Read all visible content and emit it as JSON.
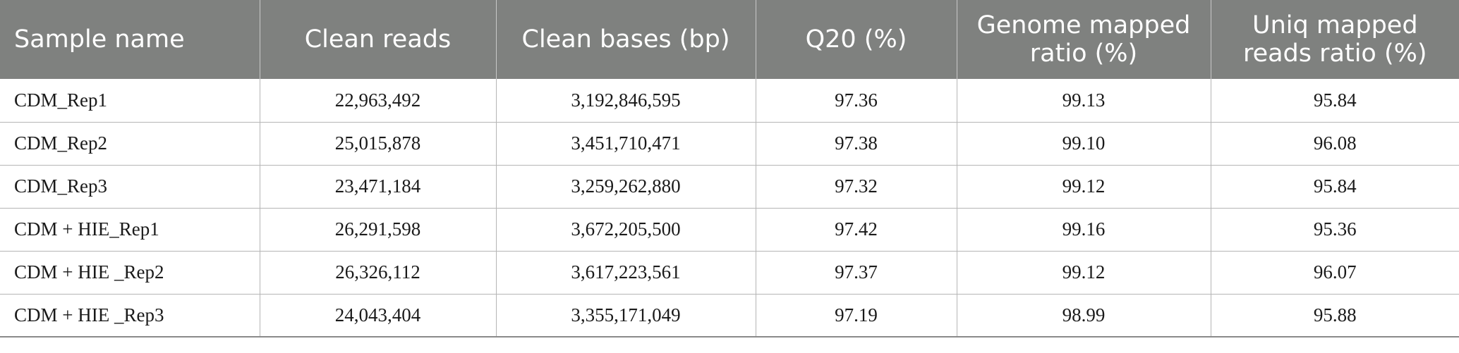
{
  "table": {
    "headers": [
      "Sample name",
      "Clean reads",
      "Clean bases (bp)",
      "Q20 (%)",
      "Genome mapped ratio (%)",
      "Uniq mapped reads ratio (%)"
    ],
    "rows": [
      [
        "CDM_Rep1",
        "22,963,492",
        "3,192,846,595",
        "97.36",
        "99.13",
        "95.84"
      ],
      [
        "CDM_Rep2",
        "25,015,878",
        "3,451,710,471",
        "97.38",
        "99.10",
        "96.08"
      ],
      [
        "CDM_Rep3",
        "23,471,184",
        "3,259,262,880",
        "97.32",
        "99.12",
        "95.84"
      ],
      [
        "CDM + HIE_Rep1",
        "26,291,598",
        "3,672,205,500",
        "97.42",
        "99.16",
        "95.36"
      ],
      [
        "CDM + HIE _Rep2",
        "26,326,112",
        "3,617,223,561",
        "97.37",
        "99.12",
        "96.07"
      ],
      [
        "CDM + HIE _Rep3",
        "24,043,404",
        "3,355,171,049",
        "97.19",
        "98.99",
        "95.88"
      ]
    ]
  },
  "colors": {
    "header_bg": "#7f817f",
    "header_text": "#ffffff",
    "grid": "#b5b5b5"
  }
}
